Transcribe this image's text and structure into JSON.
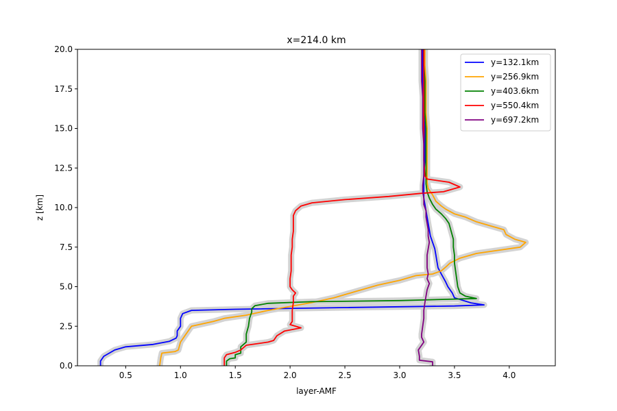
{
  "chart_data": {
    "type": "line",
    "title": "x=214.0 km",
    "xlabel": "layer-AMF",
    "ylabel": "z [km]",
    "xlim": [
      0.06,
      4.42
    ],
    "ylim": [
      0,
      20
    ],
    "xticks": [
      0.5,
      1.0,
      1.5,
      2.0,
      2.5,
      3.0,
      3.5,
      4.0
    ],
    "xtick_labels": [
      "0.5",
      "1.0",
      "1.5",
      "2.0",
      "2.5",
      "3.0",
      "3.5",
      "4.0"
    ],
    "yticks": [
      0,
      2.5,
      5,
      7.5,
      10,
      12.5,
      15,
      17.5,
      20
    ],
    "ytick_labels": [
      "0.0",
      "2.5",
      "5.0",
      "7.5",
      "10.0",
      "12.5",
      "15.0",
      "17.5",
      "20.0"
    ],
    "grid": false,
    "legend_position": "top-right",
    "uncertainty_band_color": "#d3d3d3",
    "series": [
      {
        "name": "y=132.1km",
        "color": "#0000ff",
        "points": [
          [
            0.27,
            0.0
          ],
          [
            0.27,
            0.3
          ],
          [
            0.3,
            0.6
          ],
          [
            0.4,
            1.0
          ],
          [
            0.5,
            1.2
          ],
          [
            0.75,
            1.35
          ],
          [
            0.9,
            1.55
          ],
          [
            0.96,
            1.75
          ],
          [
            0.97,
            1.9
          ],
          [
            0.97,
            2.2
          ],
          [
            1.0,
            2.5
          ],
          [
            1.0,
            3.0
          ],
          [
            1.02,
            3.3
          ],
          [
            1.1,
            3.5
          ],
          [
            1.5,
            3.57
          ],
          [
            2.5,
            3.68
          ],
          [
            3.5,
            3.78
          ],
          [
            3.77,
            3.85
          ],
          [
            3.65,
            3.98
          ],
          [
            3.5,
            4.3
          ],
          [
            3.48,
            4.6
          ],
          [
            3.44,
            5.0
          ],
          [
            3.42,
            5.3
          ],
          [
            3.38,
            5.8
          ],
          [
            3.35,
            6.2
          ],
          [
            3.34,
            6.6
          ],
          [
            3.33,
            7.0
          ],
          [
            3.32,
            7.4
          ],
          [
            3.3,
            7.8
          ],
          [
            3.28,
            8.2
          ],
          [
            3.27,
            8.6
          ],
          [
            3.26,
            9.0
          ],
          [
            3.25,
            9.4
          ],
          [
            3.24,
            9.8
          ],
          [
            3.23,
            10.2
          ],
          [
            3.22,
            10.6
          ],
          [
            3.22,
            11.0
          ],
          [
            3.22,
            11.4
          ],
          [
            3.22,
            12.0
          ],
          [
            3.23,
            13.0
          ],
          [
            3.23,
            14.0
          ],
          [
            3.23,
            15.0
          ],
          [
            3.22,
            16.0
          ],
          [
            3.22,
            17.0
          ],
          [
            3.21,
            18.0
          ],
          [
            3.21,
            19.0
          ],
          [
            3.21,
            20.0
          ]
        ]
      },
      {
        "name": "y=256.9km",
        "color": "#ffa500",
        "points": [
          [
            0.81,
            0.0
          ],
          [
            0.82,
            0.5
          ],
          [
            0.83,
            0.8
          ],
          [
            0.95,
            0.9
          ],
          [
            0.98,
            1.0
          ],
          [
            1.0,
            1.5
          ],
          [
            1.05,
            2.0
          ],
          [
            1.1,
            2.5
          ],
          [
            1.2,
            2.65
          ],
          [
            1.3,
            2.8
          ],
          [
            1.4,
            3.0
          ],
          [
            1.6,
            3.2
          ],
          [
            1.8,
            3.5
          ],
          [
            2.0,
            3.75
          ],
          [
            2.2,
            4.0
          ],
          [
            2.4,
            4.3
          ],
          [
            2.6,
            4.7
          ],
          [
            2.8,
            5.1
          ],
          [
            3.0,
            5.4
          ],
          [
            3.15,
            5.7
          ],
          [
            3.3,
            5.8
          ],
          [
            3.38,
            6.0
          ],
          [
            3.43,
            6.3
          ],
          [
            3.46,
            6.5
          ],
          [
            3.55,
            6.8
          ],
          [
            3.7,
            7.1
          ],
          [
            3.9,
            7.3
          ],
          [
            4.1,
            7.5
          ],
          [
            4.15,
            7.8
          ],
          [
            4.05,
            8.0
          ],
          [
            3.97,
            8.3
          ],
          [
            3.95,
            8.6
          ],
          [
            3.85,
            8.8
          ],
          [
            3.7,
            9.1
          ],
          [
            3.6,
            9.4
          ],
          [
            3.5,
            9.6
          ],
          [
            3.42,
            9.9
          ],
          [
            3.38,
            10.1
          ],
          [
            3.33,
            10.4
          ],
          [
            3.3,
            10.8
          ],
          [
            3.26,
            11.2
          ],
          [
            3.25,
            11.6
          ],
          [
            3.25,
            12.0
          ],
          [
            3.25,
            13.0
          ],
          [
            3.25,
            14.0
          ],
          [
            3.25,
            15.0
          ],
          [
            3.24,
            16.0
          ],
          [
            3.24,
            17.0
          ],
          [
            3.24,
            18.0
          ],
          [
            3.23,
            19.0
          ],
          [
            3.23,
            20.0
          ]
        ]
      },
      {
        "name": "y=403.6km",
        "color": "#008000",
        "points": [
          [
            1.42,
            0.0
          ],
          [
            1.42,
            0.3
          ],
          [
            1.45,
            0.45
          ],
          [
            1.5,
            0.5
          ],
          [
            1.5,
            0.7
          ],
          [
            1.55,
            0.8
          ],
          [
            1.55,
            1.2
          ],
          [
            1.6,
            1.5
          ],
          [
            1.6,
            2.0
          ],
          [
            1.62,
            2.5
          ],
          [
            1.63,
            3.0
          ],
          [
            1.65,
            3.4
          ],
          [
            1.65,
            3.6
          ],
          [
            1.68,
            3.8
          ],
          [
            1.8,
            3.95
          ],
          [
            2.2,
            4.05
          ],
          [
            3.0,
            4.12
          ],
          [
            3.7,
            4.25
          ],
          [
            3.6,
            4.4
          ],
          [
            3.55,
            4.6
          ],
          [
            3.53,
            5.0
          ],
          [
            3.52,
            5.5
          ],
          [
            3.51,
            6.0
          ],
          [
            3.5,
            6.5
          ],
          [
            3.5,
            7.0
          ],
          [
            3.49,
            7.5
          ],
          [
            3.49,
            8.0
          ],
          [
            3.47,
            8.5
          ],
          [
            3.45,
            9.0
          ],
          [
            3.42,
            9.3
          ],
          [
            3.38,
            9.6
          ],
          [
            3.33,
            9.9
          ],
          [
            3.3,
            10.2
          ],
          [
            3.27,
            10.6
          ],
          [
            3.25,
            11.0
          ],
          [
            3.24,
            11.5
          ],
          [
            3.24,
            12.0
          ],
          [
            3.24,
            13.0
          ],
          [
            3.24,
            14.0
          ],
          [
            3.24,
            15.0
          ],
          [
            3.23,
            16.0
          ],
          [
            3.23,
            17.0
          ],
          [
            3.23,
            18.0
          ],
          [
            3.22,
            19.0
          ],
          [
            3.22,
            20.0
          ]
        ]
      },
      {
        "name": "y=550.4km",
        "color": "#ff0000",
        "points": [
          [
            1.4,
            0.0
          ],
          [
            1.4,
            0.5
          ],
          [
            1.42,
            0.7
          ],
          [
            1.5,
            0.85
          ],
          [
            1.55,
            1.0
          ],
          [
            1.6,
            1.3
          ],
          [
            1.8,
            1.5
          ],
          [
            1.85,
            1.6
          ],
          [
            1.88,
            1.9
          ],
          [
            1.95,
            2.2
          ],
          [
            2.1,
            2.4
          ],
          [
            2.0,
            2.6
          ],
          [
            2.02,
            2.8
          ],
          [
            2.02,
            3.0
          ],
          [
            2.02,
            3.5
          ],
          [
            2.03,
            4.0
          ],
          [
            2.03,
            4.4
          ],
          [
            2.05,
            4.6
          ],
          [
            2.02,
            4.8
          ],
          [
            2.0,
            5.0
          ],
          [
            2.0,
            5.5
          ],
          [
            2.01,
            6.0
          ],
          [
            2.01,
            6.5
          ],
          [
            2.01,
            7.0
          ],
          [
            2.02,
            7.5
          ],
          [
            2.02,
            8.0
          ],
          [
            2.03,
            8.5
          ],
          [
            2.03,
            9.0
          ],
          [
            2.03,
            9.5
          ],
          [
            2.05,
            9.8
          ],
          [
            2.1,
            10.1
          ],
          [
            2.2,
            10.3
          ],
          [
            2.5,
            10.5
          ],
          [
            2.9,
            10.7
          ],
          [
            3.2,
            10.9
          ],
          [
            3.4,
            11.0
          ],
          [
            3.55,
            11.3
          ],
          [
            3.45,
            11.6
          ],
          [
            3.25,
            11.8
          ],
          [
            3.23,
            12.0
          ],
          [
            3.22,
            13.0
          ],
          [
            3.22,
            14.0
          ],
          [
            3.22,
            15.0
          ],
          [
            3.22,
            16.0
          ],
          [
            3.22,
            17.0
          ],
          [
            3.22,
            18.0
          ],
          [
            3.22,
            19.0
          ],
          [
            3.22,
            20.0
          ]
        ]
      },
      {
        "name": "y=697.2km",
        "color": "#800080",
        "points": [
          [
            3.3,
            0.0
          ],
          [
            3.3,
            0.25
          ],
          [
            3.18,
            0.35
          ],
          [
            3.18,
            0.6
          ],
          [
            3.17,
            1.0
          ],
          [
            3.2,
            1.3
          ],
          [
            3.22,
            1.5
          ],
          [
            3.2,
            1.8
          ],
          [
            3.2,
            2.0
          ],
          [
            3.21,
            2.5
          ],
          [
            3.22,
            3.0
          ],
          [
            3.22,
            3.5
          ],
          [
            3.23,
            4.0
          ],
          [
            3.24,
            4.4
          ],
          [
            3.25,
            4.8
          ],
          [
            3.27,
            5.2
          ],
          [
            3.25,
            5.5
          ],
          [
            3.26,
            5.8
          ],
          [
            3.25,
            6.2
          ],
          [
            3.25,
            6.6
          ],
          [
            3.25,
            7.0
          ],
          [
            3.26,
            7.4
          ],
          [
            3.27,
            7.8
          ],
          [
            3.26,
            8.2
          ],
          [
            3.26,
            8.6
          ],
          [
            3.25,
            9.0
          ],
          [
            3.24,
            9.4
          ],
          [
            3.24,
            9.8
          ],
          [
            3.22,
            10.2
          ],
          [
            3.22,
            10.6
          ],
          [
            3.21,
            11.0
          ],
          [
            3.21,
            11.4
          ],
          [
            3.22,
            12.0
          ],
          [
            3.22,
            13.0
          ],
          [
            3.22,
            14.0
          ],
          [
            3.21,
            15.0
          ],
          [
            3.21,
            16.0
          ],
          [
            3.21,
            17.0
          ],
          [
            3.2,
            18.0
          ],
          [
            3.2,
            19.0
          ],
          [
            3.2,
            20.0
          ]
        ]
      }
    ]
  }
}
